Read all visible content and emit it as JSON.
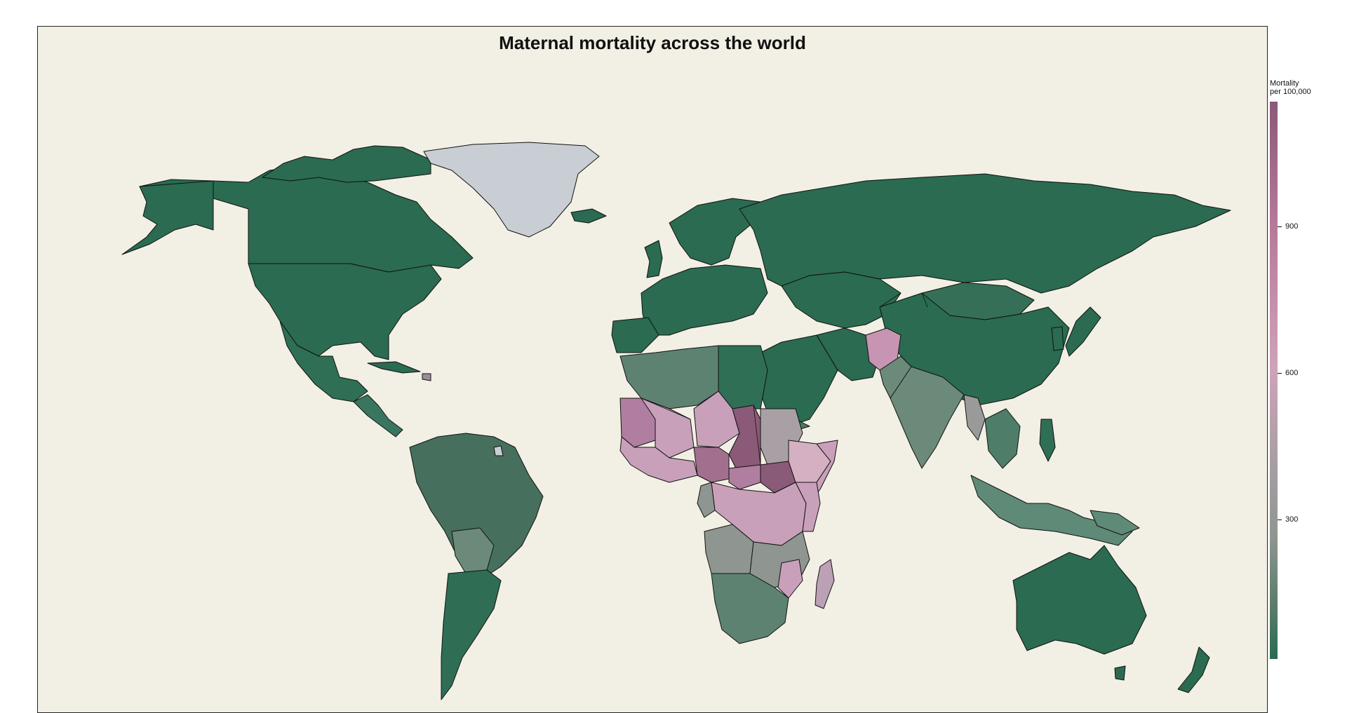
{
  "title": "Maternal mortality across the world",
  "legend": {
    "title_line1": "Mortality",
    "title_line2": "per 100,000",
    "ticks": [
      "900",
      "600",
      "300"
    ],
    "tick_values": [
      900,
      600,
      300
    ],
    "range": [
      0,
      1150
    ]
  },
  "colors": {
    "ocean": "#f2efe4",
    "low": "#2a6b51",
    "mid_low": "#4a7a64",
    "mid": "#8f9691",
    "mid_high": "#cfa3b8",
    "high": "#8a5a78",
    "no_data": "#c9ced4"
  }
}
